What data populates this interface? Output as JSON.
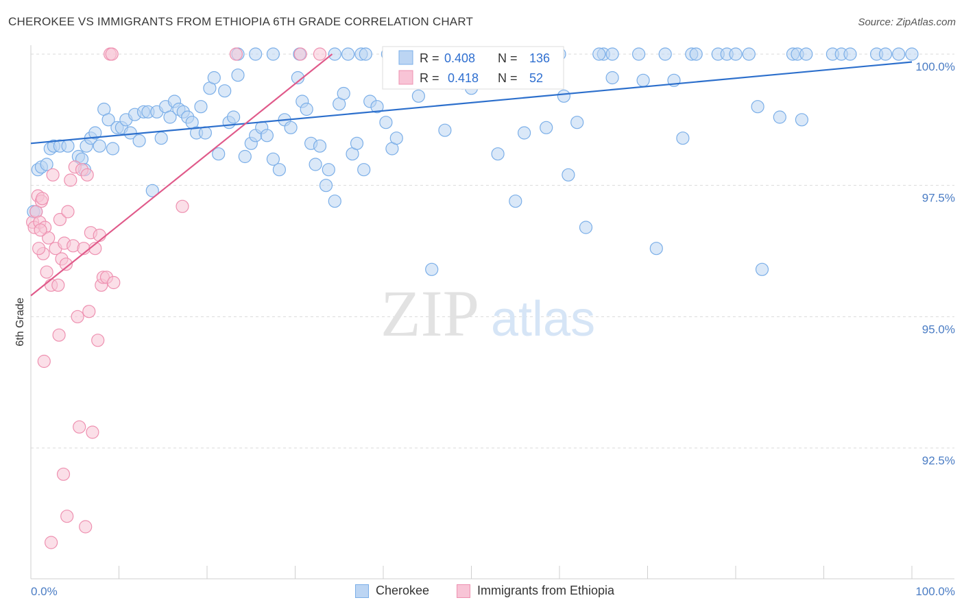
{
  "header": {
    "title": "CHEROKEE VS IMMIGRANTS FROM ETHIOPIA 6TH GRADE CORRELATION CHART",
    "source": "Source: ZipAtlas.com"
  },
  "watermark": {
    "zip": "ZIP",
    "atlas": "atlas"
  },
  "chart_data": {
    "type": "scatter",
    "title": "CHEROKEE VS IMMIGRANTS FROM ETHIOPIA 6TH GRADE CORRELATION CHART",
    "xlabel": "",
    "ylabel": "6th Grade",
    "xlim": [
      0,
      100
    ],
    "ylim": [
      90.2,
      100.4
    ],
    "x_tick_labels": [
      "0.0%",
      "100.0%"
    ],
    "y_ticks": [
      92.5,
      95.0,
      97.5,
      100.0
    ],
    "y_tick_labels": [
      "92.5%",
      "95.0%",
      "97.5%",
      "100.0%"
    ],
    "grid": "horizontal dashed",
    "legend_placement": "top-center (stats), bottom-center (series)",
    "series": [
      {
        "name": "Cherokee",
        "color": "#7aaee8",
        "fill": "#bcd5f3",
        "line_color": "#2c6fcc",
        "R": "0.408",
        "N": "136",
        "trend": {
          "x": [
            0,
            100
          ],
          "y": [
            98.3,
            99.85
          ]
        },
        "points": [
          [
            0.3,
            97.0
          ],
          [
            0.8,
            97.8
          ],
          [
            1.2,
            97.85
          ],
          [
            1.8,
            97.9
          ],
          [
            2.2,
            98.2
          ],
          [
            2.6,
            98.25
          ],
          [
            3.3,
            98.25
          ],
          [
            4.2,
            98.25
          ],
          [
            5.4,
            98.05
          ],
          [
            5.8,
            98.0
          ],
          [
            6.1,
            97.8
          ],
          [
            6.3,
            98.25
          ],
          [
            6.8,
            98.4
          ],
          [
            7.3,
            98.5
          ],
          [
            7.8,
            98.25
          ],
          [
            8.3,
            98.95
          ],
          [
            8.8,
            98.75
          ],
          [
            9.3,
            98.2
          ],
          [
            9.8,
            98.6
          ],
          [
            10.3,
            98.6
          ],
          [
            10.8,
            98.75
          ],
          [
            11.3,
            98.5
          ],
          [
            11.8,
            98.85
          ],
          [
            12.3,
            98.35
          ],
          [
            12.8,
            98.9
          ],
          [
            13.3,
            98.9
          ],
          [
            13.8,
            97.4
          ],
          [
            14.3,
            98.9
          ],
          [
            14.8,
            98.4
          ],
          [
            15.3,
            99.0
          ],
          [
            15.8,
            98.8
          ],
          [
            16.3,
            99.1
          ],
          [
            16.8,
            98.95
          ],
          [
            17.3,
            98.9
          ],
          [
            17.8,
            98.8
          ],
          [
            18.3,
            98.7
          ],
          [
            18.8,
            98.5
          ],
          [
            19.3,
            99.0
          ],
          [
            19.8,
            98.5
          ],
          [
            20.3,
            99.35
          ],
          [
            20.8,
            99.55
          ],
          [
            21.3,
            98.1
          ],
          [
            22.0,
            99.3
          ],
          [
            22.5,
            98.7
          ],
          [
            23.0,
            98.8
          ],
          [
            23.5,
            99.6
          ],
          [
            24.3,
            98.05
          ],
          [
            25.0,
            98.3
          ],
          [
            25.5,
            98.45
          ],
          [
            26.2,
            98.6
          ],
          [
            26.8,
            98.45
          ],
          [
            27.5,
            98.0
          ],
          [
            28.2,
            97.8
          ],
          [
            28.8,
            98.75
          ],
          [
            29.5,
            98.6
          ],
          [
            30.3,
            99.55
          ],
          [
            30.8,
            99.1
          ],
          [
            31.3,
            98.95
          ],
          [
            31.8,
            98.3
          ],
          [
            32.3,
            97.9
          ],
          [
            32.8,
            98.25
          ],
          [
            33.5,
            97.5
          ],
          [
            33.8,
            97.8
          ],
          [
            34.5,
            97.2
          ],
          [
            35.0,
            99.05
          ],
          [
            35.5,
            99.25
          ],
          [
            36.5,
            98.1
          ],
          [
            37.0,
            98.3
          ],
          [
            37.8,
            97.8
          ],
          [
            38.5,
            99.1
          ],
          [
            39.3,
            99.0
          ],
          [
            40.3,
            98.7
          ],
          [
            41.0,
            98.2
          ],
          [
            41.5,
            98.4
          ],
          [
            44.0,
            99.2
          ],
          [
            45.5,
            95.9
          ],
          [
            47.0,
            98.55
          ],
          [
            49.0,
            99.45
          ],
          [
            50.0,
            99.35
          ],
          [
            53.0,
            98.1
          ],
          [
            55.0,
            97.2
          ],
          [
            56.0,
            98.5
          ],
          [
            58.5,
            98.6
          ],
          [
            59.0,
            100.0
          ],
          [
            60.5,
            99.2
          ],
          [
            61.0,
            97.7
          ],
          [
            62.0,
            98.7
          ],
          [
            63.0,
            96.7
          ],
          [
            65.0,
            100.0
          ],
          [
            66.0,
            100.0
          ],
          [
            69.0,
            100.0
          ],
          [
            69.5,
            99.5
          ],
          [
            71.0,
            96.3
          ],
          [
            72.0,
            100.0
          ],
          [
            73.0,
            99.5
          ],
          [
            74.0,
            98.4
          ],
          [
            75.0,
            100.0
          ],
          [
            75.5,
            100.0
          ],
          [
            78.0,
            100.0
          ],
          [
            79.0,
            100.0
          ],
          [
            80.0,
            100.0
          ],
          [
            81.5,
            100.0
          ],
          [
            82.5,
            99.0
          ],
          [
            83.0,
            95.9
          ],
          [
            85.0,
            98.8
          ],
          [
            86.5,
            100.0
          ],
          [
            87.0,
            100.0
          ],
          [
            87.5,
            98.75
          ],
          [
            88.0,
            100.0
          ],
          [
            91.0,
            100.0
          ],
          [
            92.0,
            100.0
          ],
          [
            93.0,
            100.0
          ],
          [
            96.0,
            100.0
          ],
          [
            97.0,
            100.0
          ],
          [
            98.5,
            100.0
          ],
          [
            100.0,
            100.0
          ],
          [
            25.5,
            100.0
          ],
          [
            30.5,
            100.0
          ],
          [
            34.5,
            100.0
          ],
          [
            36.0,
            100.0
          ],
          [
            37.5,
            100.0
          ],
          [
            38.0,
            100.0
          ],
          [
            40.5,
            100.0
          ],
          [
            42.0,
            100.0
          ],
          [
            43.0,
            100.0
          ],
          [
            45.0,
            100.0
          ],
          [
            46.5,
            100.0
          ],
          [
            48.0,
            100.0
          ],
          [
            50.5,
            100.0
          ],
          [
            51.0,
            100.0
          ],
          [
            52.0,
            100.0
          ],
          [
            53.5,
            100.0
          ],
          [
            55.5,
            100.0
          ],
          [
            57.0,
            100.0
          ],
          [
            64.5,
            100.0
          ],
          [
            60.0,
            100.0
          ],
          [
            23.5,
            100.0
          ],
          [
            27.5,
            100.0
          ],
          [
            66.0,
            99.55
          ],
          [
            0.6,
            97.0
          ]
        ]
      },
      {
        "name": "Immigrants from Ethiopia",
        "color": "#ee90b0",
        "fill": "#f8c4d6",
        "line_color": "#e05a8a",
        "R": "0.418",
        "N": "52",
        "trend": {
          "x": [
            0,
            34.2
          ],
          "y": [
            95.4,
            100.0
          ]
        },
        "points": [
          [
            0.2,
            96.8
          ],
          [
            0.4,
            96.7
          ],
          [
            0.6,
            97.0
          ],
          [
            0.8,
            97.3
          ],
          [
            1.0,
            96.8
          ],
          [
            1.2,
            97.2
          ],
          [
            1.4,
            96.2
          ],
          [
            1.6,
            96.7
          ],
          [
            1.8,
            95.85
          ],
          [
            2.0,
            96.5
          ],
          [
            2.3,
            95.6
          ],
          [
            2.5,
            97.7
          ],
          [
            2.8,
            96.3
          ],
          [
            3.1,
            95.6
          ],
          [
            3.3,
            96.85
          ],
          [
            3.5,
            96.1
          ],
          [
            3.8,
            96.4
          ],
          [
            4.0,
            96.0
          ],
          [
            4.2,
            97.0
          ],
          [
            4.5,
            97.6
          ],
          [
            4.8,
            96.35
          ],
          [
            5.0,
            97.85
          ],
          [
            5.3,
            95.0
          ],
          [
            5.5,
            92.9
          ],
          [
            5.8,
            97.8
          ],
          [
            6.0,
            96.3
          ],
          [
            6.2,
            91.0
          ],
          [
            6.4,
            97.7
          ],
          [
            6.6,
            95.1
          ],
          [
            6.8,
            96.6
          ],
          [
            7.0,
            92.8
          ],
          [
            7.3,
            96.3
          ],
          [
            7.6,
            94.55
          ],
          [
            7.8,
            96.55
          ],
          [
            8.0,
            95.6
          ],
          [
            8.2,
            95.75
          ],
          [
            8.6,
            95.75
          ],
          [
            9.0,
            100.0
          ],
          [
            9.2,
            100.0
          ],
          [
            9.4,
            95.65
          ],
          [
            1.5,
            94.15
          ],
          [
            3.2,
            94.65
          ],
          [
            3.7,
            92.0
          ],
          [
            4.1,
            91.2
          ],
          [
            2.3,
            90.7
          ],
          [
            17.2,
            97.1
          ],
          [
            23.3,
            100.0
          ],
          [
            30.6,
            100.0
          ],
          [
            32.8,
            100.0
          ],
          [
            1.3,
            97.25
          ],
          [
            0.9,
            96.3
          ],
          [
            1.1,
            96.65
          ]
        ]
      }
    ]
  },
  "legend_box": {
    "r_label": "R =",
    "n_label": "N ="
  },
  "bottom_legend": {
    "items": [
      "Cherokee",
      "Immigrants from Ethiopia"
    ]
  }
}
